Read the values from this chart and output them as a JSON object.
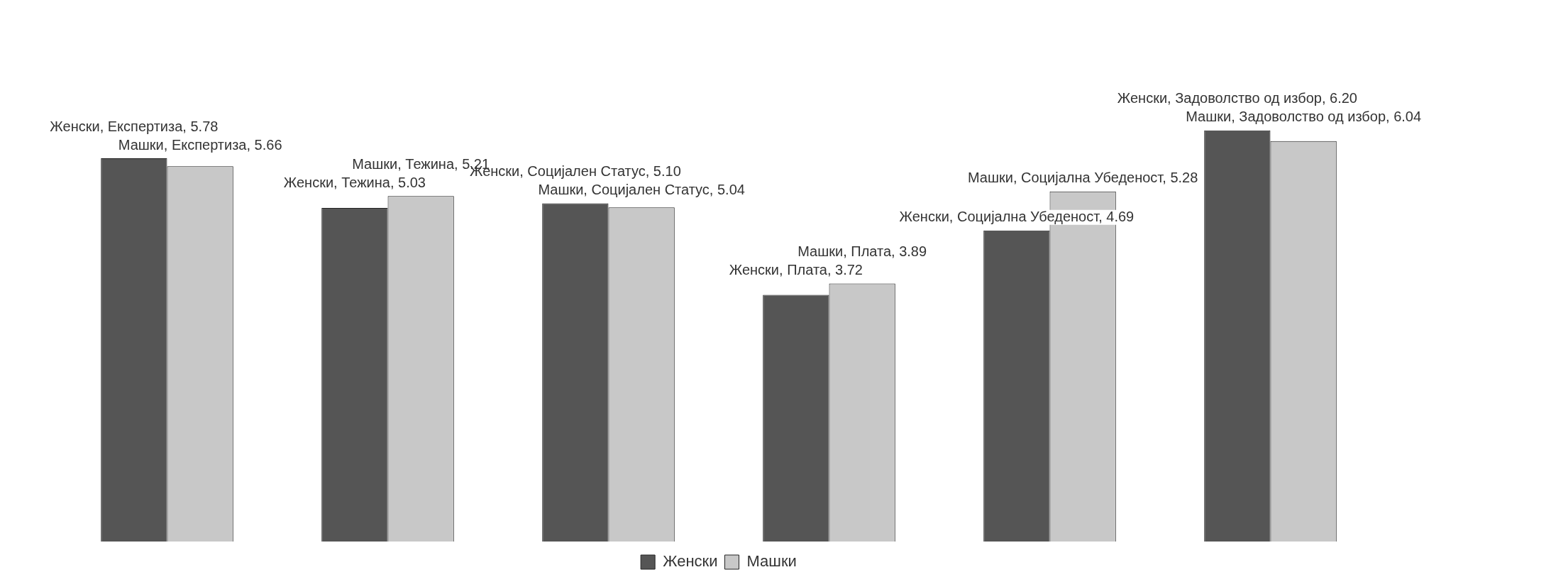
{
  "chart_data": {
    "type": "bar",
    "categories": [
      null,
      null,
      null,
      null,
      null,
      null
    ],
    "series": [
      {
        "name": "Женски",
        "color": "#555555",
        "values": [
          5.78,
          5.03,
          5.1,
          3.72,
          4.69,
          6.2
        ],
        "value_labels": [
          "Женски, Експертиза, 5.78",
          "Женски, Тежина, 5.03",
          "Женски, Социјален Статус, 5.10",
          "Женски, Плата, 3.72",
          "Женски, Социјална Убеденост, 4.69",
          "Женски, Задоволство од избор, 6.20"
        ]
      },
      {
        "name": "Машки",
        "color": "#c8c8c8",
        "values": [
          5.66,
          5.21,
          5.04,
          3.89,
          5.28,
          6.04
        ],
        "value_labels": [
          "Машки, Експертиза, 5.66",
          "Машки, Тежина, 5.21",
          "Машки, Социјален Статус, 5.04",
          "Машки, Плата, 3.89",
          "Машки, Социјална Убеденост, 5.28",
          "Машки, Задоволство од избор, 6.04"
        ]
      }
    ],
    "legend": "bottom",
    "grid": false
  }
}
